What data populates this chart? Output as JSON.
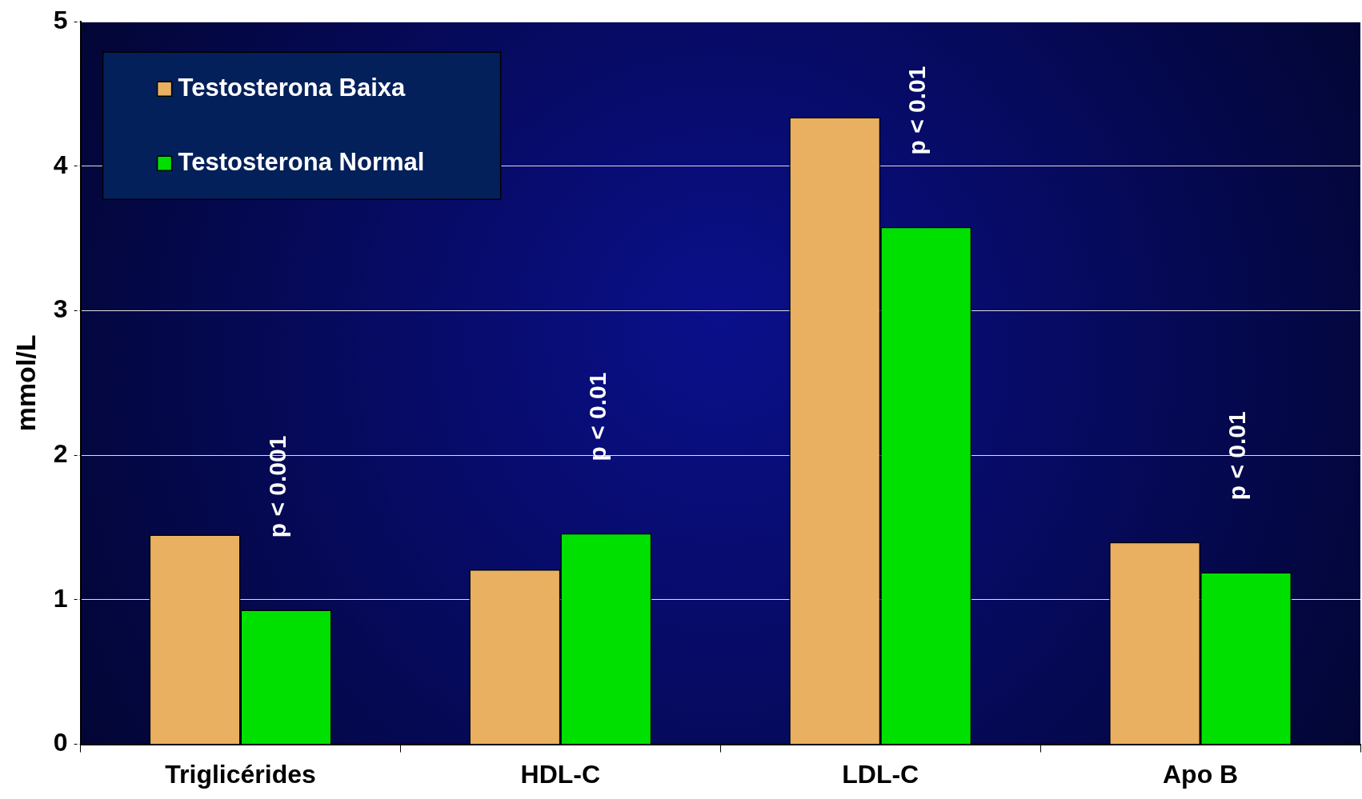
{
  "chart_data": {
    "type": "bar",
    "ylabel": "mmol/L",
    "categories": [
      "Triglicérides",
      "HDL-C",
      "LDL-C",
      "Apo B"
    ],
    "series": [
      {
        "name": "Testosterona Baixa",
        "color": "#e8b060",
        "values": [
          1.45,
          1.21,
          4.34,
          1.4
        ]
      },
      {
        "name": "Testosterona Normal",
        "color": "#00e000",
        "values": [
          0.93,
          1.46,
          3.58,
          1.19
        ]
      }
    ],
    "ylim": [
      0,
      5
    ],
    "yticks": [
      0,
      1,
      2,
      3,
      4,
      5
    ],
    "grid": "y",
    "legend": "top left",
    "annotations": [
      "p < 0.001",
      "p < 0.01",
      "p < 0.01",
      "p < 0.01"
    ]
  }
}
